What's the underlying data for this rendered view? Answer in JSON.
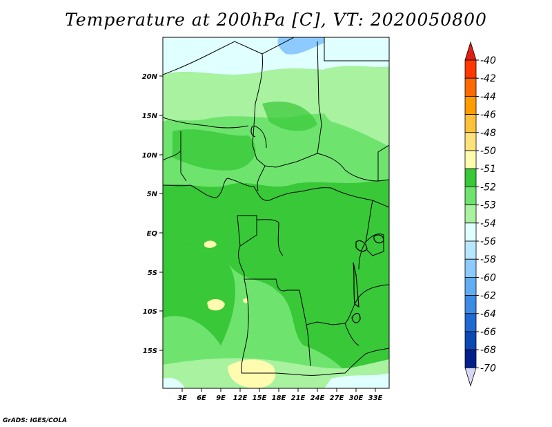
{
  "title": "Temperature at 200hPa [C], VT: 2020050800",
  "credit": "GrADS: IGES/COLA",
  "map": {
    "lat_labels": [
      "20N",
      "15N",
      "10N",
      "5N",
      "EQ",
      "5S",
      "10S",
      "15S"
    ],
    "lon_labels": [
      "3E",
      "6E",
      "9E",
      "12E",
      "15E",
      "18E",
      "21E",
      "24E",
      "27E",
      "30E",
      "33E"
    ]
  },
  "colorbar": {
    "labels": [
      "-40",
      "-42",
      "-44",
      "-46",
      "-48",
      "-50",
      "-51",
      "-52",
      "-53",
      "-54",
      "-56",
      "-58",
      "-60",
      "-62",
      "-64",
      "-66",
      "-68",
      "-70"
    ],
    "colors": [
      "#ff0000",
      "#ff3a00",
      "#ff6a00",
      "#ff9c00",
      "#ffc03a",
      "#ffe27a",
      "#fffcb0",
      "#38c838",
      "#6ee46e",
      "#a8f2a0",
      "#e0ffff",
      "#b8e8ff",
      "#8ccaff",
      "#62acf4",
      "#3c8ce6",
      "#1e6ad2",
      "#0a48b4",
      "#02208c",
      "#000a5a"
    ],
    "top_arrow": "#e21e12",
    "bottom_arrow": "#d8d8f4"
  }
}
